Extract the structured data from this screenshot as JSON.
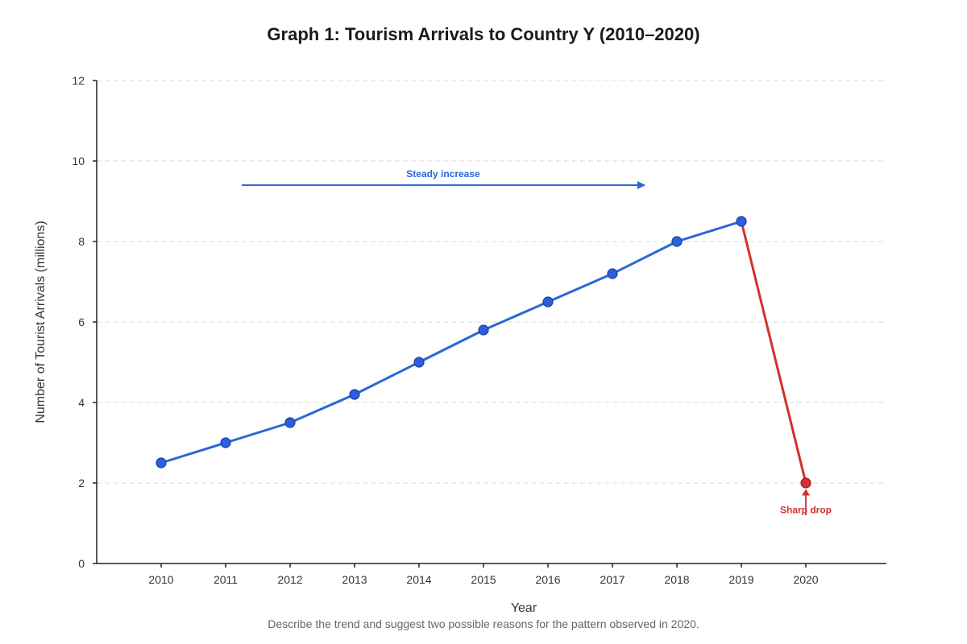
{
  "chart_data": {
    "type": "line",
    "title": "Graph 1: Tourism Arrivals to Country Y (2010–2020)",
    "xlabel": "Year",
    "ylabel": "Number of Tourist Arrivals (millions)",
    "x": [
      "2010",
      "2011",
      "2012",
      "2013",
      "2014",
      "2015",
      "2016",
      "2017",
      "2018",
      "2019",
      "2020"
    ],
    "series": [
      {
        "values": [
          2.5,
          3.0,
          3.5,
          4.2,
          5.0,
          5.8,
          6.5,
          7.2,
          8.0,
          8.5,
          2.0
        ]
      }
    ],
    "ylim": [
      0,
      12
    ],
    "yticks": [
      "0",
      "2",
      "4",
      "6",
      "8",
      "10",
      "12"
    ],
    "grid": "horizontal dashed",
    "colors": {
      "main_line": "#2a67d6",
      "main_marker": "#2a5fe0",
      "drop_line": "#d23030",
      "drop_marker": "#d23030",
      "axis": "#222222",
      "grid": "#d8d8d8"
    },
    "annotations": {
      "steady_increase": {
        "text": "Steady increase",
        "from_year": 2011.25,
        "to_year": 2017.5,
        "at_value": 9.4,
        "color": "#2a67d6"
      },
      "sharp_drop": {
        "text": "Sharp drop",
        "year": 2020,
        "arrow_from_value": 1.2,
        "arrow_to_value": 1.85,
        "color": "#d23030"
      }
    },
    "caption": "Describe the trend and suggest two possible reasons for the pattern observed in 2020."
  }
}
